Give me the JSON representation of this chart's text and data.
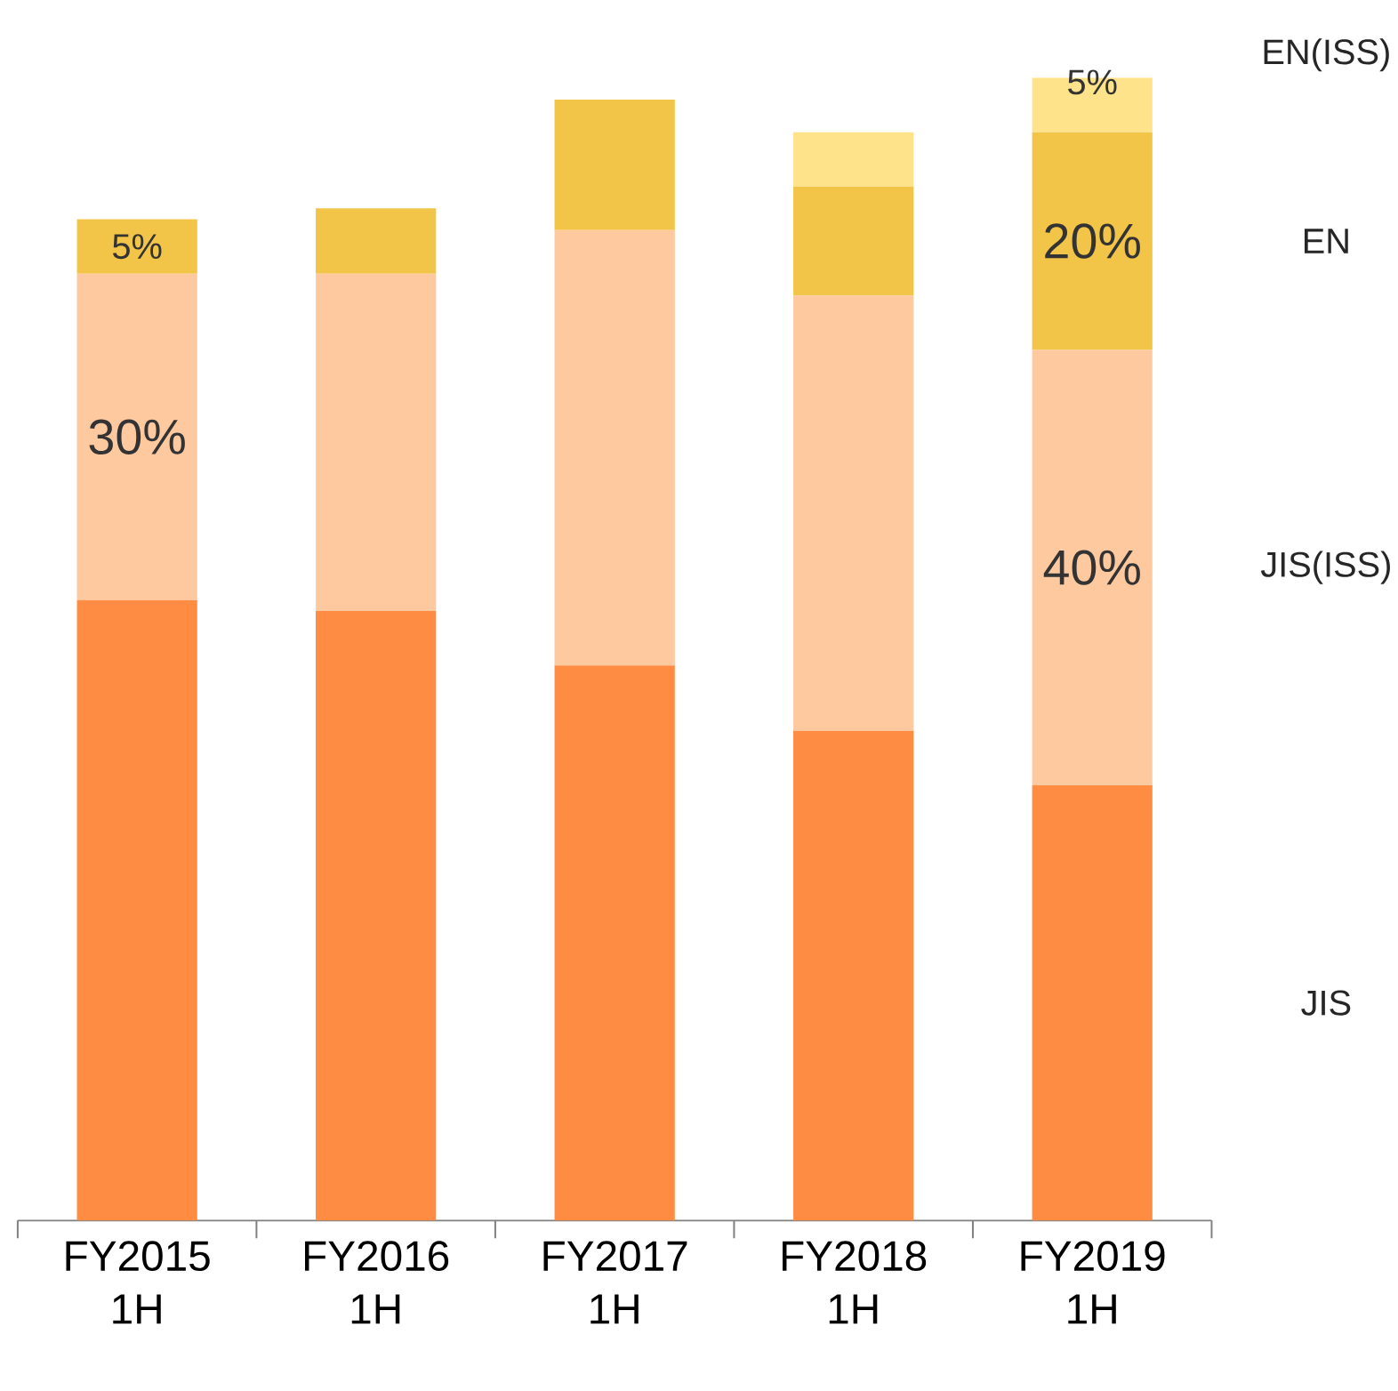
{
  "chart_data": {
    "type": "bar",
    "stacked": true,
    "categories": [
      "FY2015 1H",
      "FY2016 1H",
      "FY2017 1H",
      "FY2018 1H",
      "FY2019 1H"
    ],
    "series": [
      {
        "name": "JIS",
        "color": "#ff8c42",
        "values": [
          57,
          56,
          51,
          45,
          40
        ]
      },
      {
        "name": "JIS(ISS)",
        "color": "#ffc9a0",
        "values": [
          30,
          31,
          40,
          40,
          40
        ],
        "value_labels": [
          "30%",
          null,
          null,
          null,
          "40%"
        ]
      },
      {
        "name": "EN",
        "color": "#f2c447",
        "values": [
          5,
          6,
          12,
          10,
          20
        ],
        "value_labels": [
          "5%",
          null,
          null,
          null,
          "20%"
        ]
      },
      {
        "name": "EN(ISS)",
        "color": "#ffe38a",
        "values": [
          0,
          0,
          0,
          5,
          5
        ],
        "value_labels": [
          null,
          null,
          null,
          null,
          "5%"
        ]
      }
    ]
  }
}
